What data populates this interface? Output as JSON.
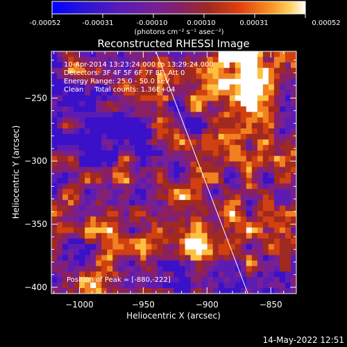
{
  "colorbar": {
    "ticks": [
      "-0.00052",
      "-0.00031",
      "-0.00010",
      "0.00010",
      "0.00031",
      "0.00052"
    ],
    "unit_label": "(photons cm⁻² s⁻¹ asec⁻²)",
    "range": [
      -0.00052,
      0.00052
    ]
  },
  "annotations": [
    "10-Apr-2014 13:23:24.000 to 13:29:24.000",
    "Detectors: 3F 4F 5F 6F 7F 8F, Att 0",
    "Energy Range: 25.0 - 50.0 keV",
    "Clean     Total counts: 1.36E+04"
  ],
  "peak_label": "Position of Peak = [-880,-222]",
  "footer": {
    "timestamp": "14-May-2022 12:51"
  },
  "chart_data": {
    "type": "heatmap",
    "title": "Reconstructed RHESSI Image",
    "xlabel": "Heliocentric X (arcsec)",
    "ylabel": "Heliocentric Y (arcsec)",
    "xlim": [
      -1022,
      -830
    ],
    "ylim": [
      -405,
      -213
    ],
    "x_ticks": [
      -1000,
      -950,
      -900,
      -850
    ],
    "y_ticks": [
      -250,
      -300,
      -350,
      -400
    ],
    "x_tick_labels": [
      "−1000",
      "−950",
      "−900",
      "−850"
    ],
    "y_tick_labels": [
      "−250",
      "−300",
      "−350",
      "−400"
    ],
    "limb_line": [
      [
        -940,
        -213
      ],
      [
        -868,
        -405
      ]
    ],
    "peak": [
      -880,
      -222
    ],
    "grid": false,
    "colormap": [
      "#0000ff",
      "#3a10c8",
      "#5c1cb4",
      "#782090",
      "#8a2060",
      "#a02a20",
      "#d04010",
      "#f08020",
      "#ffc040",
      "#ffffff"
    ]
  }
}
